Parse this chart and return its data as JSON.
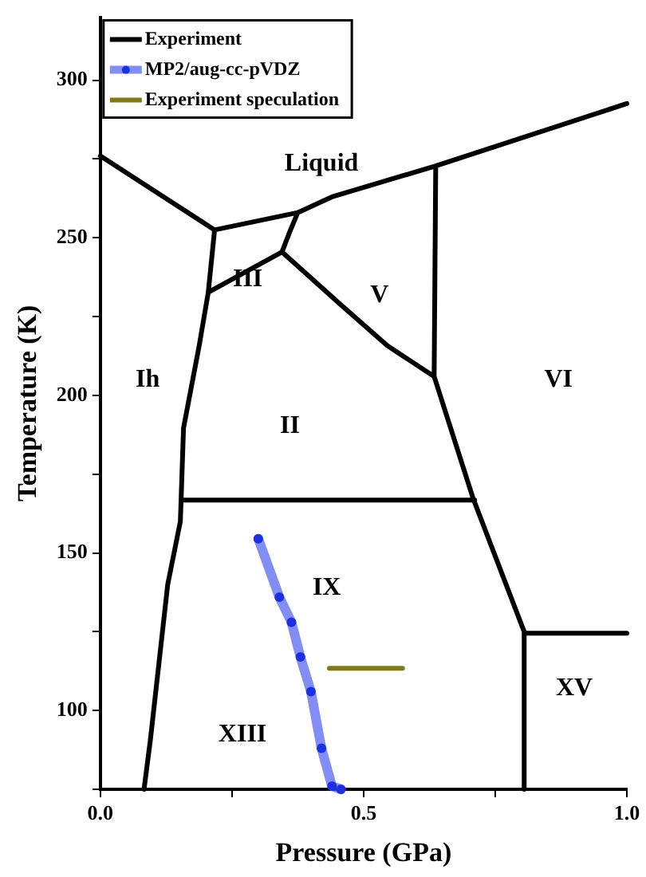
{
  "chart_data": {
    "type": "line",
    "xlabel": "Pressure (GPa)",
    "ylabel": "Temperature (K)",
    "xlim": [
      0,
      1
    ],
    "ylim": [
      75,
      320
    ],
    "xticks": [
      {
        "value": 0,
        "label": "0.0"
      },
      {
        "value": 0.25,
        "label": null
      },
      {
        "value": 0.5,
        "label": "0.5"
      },
      {
        "value": 0.75,
        "label": null
      },
      {
        "value": 1,
        "label": "1.0"
      }
    ],
    "yticks": [
      {
        "value": 75,
        "label": null
      },
      100,
      {
        "value": 125,
        "label": null
      },
      150,
      {
        "value": 175,
        "label": null
      },
      200,
      {
        "value": 225,
        "label": null
      },
      250,
      {
        "value": 275,
        "label": null
      },
      300
    ],
    "grid": false,
    "legend": "top left",
    "line_style": "solid",
    "series": [
      {
        "name": "Experiment",
        "color": "#000000",
        "marker": "none",
        "x": [
          0,
          0.217,
          null,
          0.217,
          0.375,
          0.44,
          0.637,
          1.0,
          null,
          0.217,
          0.205,
          0.188,
          0.158,
          0.152,
          0.128,
          0.095,
          0.083,
          null,
          0.205,
          0.345,
          0.36,
          0.375,
          null,
          0.345,
          0.455,
          0.545,
          0.634,
          0.637,
          null,
          0.634,
          0.708,
          0.805,
          0.805,
          null,
          0.805,
          1.0,
          null,
          0.158,
          0.711
        ],
        "values": [
          276,
          252.5,
          null,
          252.5,
          258,
          263,
          272.8,
          292.6,
          null,
          252.5,
          232.7,
          216,
          189.6,
          160,
          140,
          90.6,
          75,
          null,
          232.7,
          245.5,
          252,
          258,
          null,
          245.5,
          229,
          215.8,
          206,
          272.8,
          null,
          206,
          167.3,
          125,
          75,
          null,
          124.5,
          124.5,
          null,
          166.8,
          166.8
        ]
      },
      {
        "name": "MP2/aug-cc-pVDZ",
        "color": "#4a5cf0",
        "marker": "circle",
        "x": [
          0.3,
          0.34,
          0.363,
          0.38,
          0.4,
          0.42,
          0.44,
          0.457
        ],
        "values": [
          154.5,
          136,
          128,
          117,
          106,
          88,
          76,
          75
        ]
      },
      {
        "name": "Experiment speculation",
        "color": "#807a10",
        "marker": "none",
        "x": [
          0.435,
          0.574
        ],
        "values": [
          113.4,
          113.4
        ]
      }
    ],
    "annotations": [
      "Liquid",
      "III",
      "V",
      "Ih",
      "II",
      "VI",
      "IX",
      "XIII",
      "XV"
    ]
  }
}
